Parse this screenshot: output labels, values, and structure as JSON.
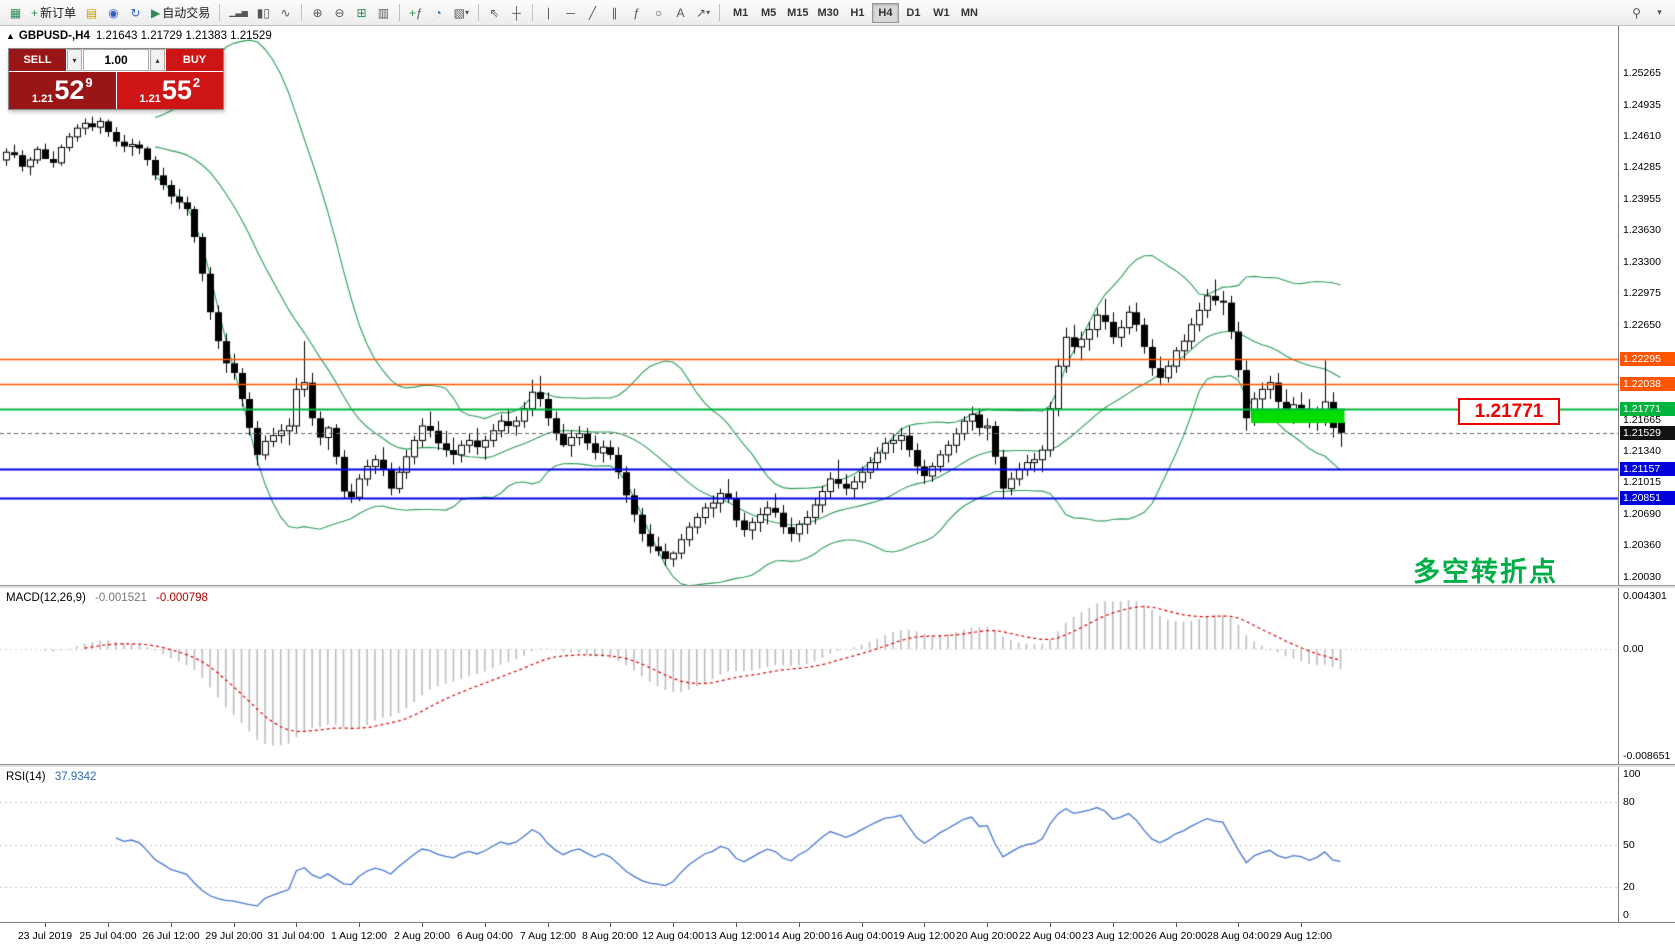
{
  "toolbar": {
    "new_order_label": "新订单",
    "autotrade_label": "自动交易",
    "timeframes": [
      "M1",
      "M5",
      "M15",
      "M30",
      "H1",
      "H4",
      "D1",
      "W1",
      "MN"
    ],
    "active_timeframe": "H4"
  },
  "icons": {
    "new_chart": "▦",
    "plus": "+",
    "templates": "▤",
    "profiles": "◉",
    "refresh": "↻",
    "play": "▶",
    "bars": "▁▃▅",
    "candles": "▮▯",
    "line_chart": "∿",
    "zoom_in": "⊕",
    "zoom_out": "⊖",
    "tile": "⊞",
    "cascade": "▥",
    "indicator_add": "ƒ",
    "period": "◔",
    "objects": "▧",
    "chevron_down": "▾",
    "cursor": "⇖",
    "crosshair": "┼",
    "vline": "∣",
    "hline": "─",
    "trendline": "╱",
    "channel": "∥",
    "fibonacci": "ƒ",
    "ellipse": "○",
    "text_tool": "A",
    "arrow_tool": "↗",
    "search": "⚲",
    "triangle_up": "▲",
    "spinner_up": "▴",
    "spinner_down": "▾"
  },
  "chart": {
    "symbol": "GBPUSD-,H4",
    "ohlc_line": "1.21643 1.21729 1.21383 1.21529",
    "price_flag": "1.21771",
    "note_text": "多空转折点"
  },
  "trade_panel": {
    "sell_label": "SELL",
    "buy_label": "BUY",
    "volume": "1.00",
    "sell_price": {
      "prefix": "1.21",
      "big": "52",
      "sup": "9"
    },
    "buy_price": {
      "prefix": "1.21",
      "big": "55",
      "sup": "2"
    },
    "colors": {
      "sell": "#9a1515",
      "buy": "#ce1414"
    }
  },
  "macd_panel": {
    "title": "MACD(12,26,9)",
    "macd_value": "-0.001521",
    "signal_value": "-0.000798",
    "scale": {
      "max": 0.004301,
      "min": -0.008651
    },
    "axis_labels": [
      "0.004301",
      "0.00",
      "-0.008651"
    ],
    "histogram_color": "#bdbdbd",
    "signal_color": "#e00000"
  },
  "rsi_panel": {
    "title": "RSI(14)",
    "value": "37.9342",
    "axis_labels": [
      100,
      80,
      50,
      20,
      0
    ],
    "levels": [
      80,
      50,
      20
    ],
    "line_color": "#4878d0"
  },
  "chart_data": {
    "type": "candlestick",
    "symbol": "GBPUSD",
    "period": "H4",
    "price_scale": {
      "max": 1.2575,
      "min": 1.1995
    },
    "current_price": 1.21529,
    "y_ticks": [
      1.25265,
      1.24935,
      1.2461,
      1.24285,
      1.23955,
      1.2363,
      1.233,
      1.22975,
      1.2265,
      1.21665,
      1.2134,
      1.21015,
      1.2069,
      1.2036,
      1.2003
    ],
    "levels": [
      {
        "price": 1.22295,
        "color": "#ff5500",
        "width": 1.6
      },
      {
        "price": 1.22038,
        "color": "#ff5500",
        "width": 1.6
      },
      {
        "price": 1.21771,
        "color": "#00b43c",
        "width": 2
      },
      {
        "price": 1.21157,
        "color": "#0000dd",
        "width": 2
      },
      {
        "price": 1.20851,
        "color": "#0000dd",
        "width": 2
      }
    ],
    "highlight_box": {
      "start": 159,
      "end": 170,
      "top": 1.2178,
      "bottom": 1.2163,
      "color": "#00dd00"
    },
    "bollinger": {
      "period": 20,
      "deviation": 2,
      "color": "#2e9e5b"
    },
    "x_labels": [
      "23 Jul 2019",
      "25 Jul 04:00",
      "26 Jul 12:00",
      "29 Jul 20:00",
      "31 Jul 04:00",
      "1 Aug 12:00",
      "2 Aug 20:00",
      "6 Aug 04:00",
      "7 Aug 12:00",
      "8 Aug 20:00",
      "12 Aug 04:00",
      "13 Aug 12:00",
      "14 Aug 20:00",
      "16 Aug 04:00",
      "19 Aug 12:00",
      "20 Aug 20:00",
      "22 Aug 04:00",
      "23 Aug 12:00",
      "26 Aug 20:00",
      "28 Aug 04:00",
      "29 Aug 12:00"
    ],
    "ohlc": [
      [
        1.2436,
        1.2448,
        1.243,
        1.2444
      ],
      [
        1.2444,
        1.2452,
        1.2438,
        1.2441
      ],
      [
        1.2441,
        1.2446,
        1.2424,
        1.2429
      ],
      [
        1.2429,
        1.2439,
        1.242,
        1.2436
      ],
      [
        1.2436,
        1.245,
        1.2432,
        1.2447
      ],
      [
        1.2447,
        1.2453,
        1.2437,
        1.2437
      ],
      [
        1.2437,
        1.2445,
        1.2428,
        1.2433
      ],
      [
        1.2433,
        1.2452,
        1.243,
        1.2449
      ],
      [
        1.2449,
        1.2464,
        1.2445,
        1.246
      ],
      [
        1.246,
        1.2473,
        1.2455,
        1.2469
      ],
      [
        1.2469,
        1.2479,
        1.2462,
        1.2474
      ],
      [
        1.2474,
        1.2481,
        1.2466,
        1.247
      ],
      [
        1.247,
        1.248,
        1.2463,
        1.2476
      ],
      [
        1.2476,
        1.2478,
        1.246,
        1.2465
      ],
      [
        1.2465,
        1.247,
        1.245,
        1.2455
      ],
      [
        1.2455,
        1.2462,
        1.2444,
        1.245
      ],
      [
        1.245,
        1.2458,
        1.244,
        1.2452
      ],
      [
        1.2452,
        1.2456,
        1.2442,
        1.2448
      ],
      [
        1.2448,
        1.245,
        1.243,
        1.2436
      ],
      [
        1.2436,
        1.244,
        1.2415,
        1.242
      ],
      [
        1.242,
        1.2428,
        1.2405,
        1.241
      ],
      [
        1.241,
        1.2415,
        1.239,
        1.2398
      ],
      [
        1.2398,
        1.2406,
        1.2385,
        1.2392
      ],
      [
        1.2392,
        1.2398,
        1.2378,
        1.2385
      ],
      [
        1.2385,
        1.2388,
        1.235,
        1.2356
      ],
      [
        1.2356,
        1.236,
        1.231,
        1.2318
      ],
      [
        1.2318,
        1.2325,
        1.227,
        1.2278
      ],
      [
        1.2278,
        1.2285,
        1.224,
        1.2248
      ],
      [
        1.2248,
        1.2256,
        1.2215,
        1.2225
      ],
      [
        1.2225,
        1.2235,
        1.2208,
        1.2215
      ],
      [
        1.2215,
        1.222,
        1.218,
        1.2188
      ],
      [
        1.2188,
        1.2195,
        1.215,
        1.2158
      ],
      [
        1.2158,
        1.2165,
        1.2119,
        1.213
      ],
      [
        1.213,
        1.215,
        1.2125,
        1.2144
      ],
      [
        1.2144,
        1.2158,
        1.2138,
        1.215
      ],
      [
        1.215,
        1.2162,
        1.2142,
        1.2155
      ],
      [
        1.2155,
        1.2168,
        1.214,
        1.216
      ],
      [
        1.216,
        1.221,
        1.2152,
        1.2198
      ],
      [
        1.2198,
        1.2248,
        1.219,
        1.2205
      ],
      [
        1.2205,
        1.2215,
        1.216,
        1.2168
      ],
      [
        1.2168,
        1.2175,
        1.214,
        1.2148
      ],
      [
        1.2148,
        1.216,
        1.2135,
        1.2158
      ],
      [
        1.2158,
        1.2162,
        1.212,
        1.2128
      ],
      [
        1.2128,
        1.2135,
        1.2085,
        1.2092
      ],
      [
        1.2092,
        1.21,
        1.208,
        1.2086
      ],
      [
        1.2086,
        1.211,
        1.2082,
        1.2105
      ],
      [
        1.2105,
        1.2125,
        1.2098,
        1.2118
      ],
      [
        1.2118,
        1.213,
        1.211,
        1.2125
      ],
      [
        1.2125,
        1.2138,
        1.2108,
        1.2115
      ],
      [
        1.2115,
        1.2122,
        1.2088,
        1.2095
      ],
      [
        1.2095,
        1.2118,
        1.209,
        1.2112
      ],
      [
        1.2112,
        1.2135,
        1.2105,
        1.2128
      ],
      [
        1.2128,
        1.215,
        1.212,
        1.2145
      ],
      [
        1.2145,
        1.2168,
        1.2138,
        1.216
      ],
      [
        1.216,
        1.2175,
        1.2148,
        1.2155
      ],
      [
        1.2155,
        1.2165,
        1.2135,
        1.2142
      ],
      [
        1.2142,
        1.2155,
        1.2128,
        1.2135
      ],
      [
        1.2135,
        1.2148,
        1.212,
        1.213
      ],
      [
        1.213,
        1.2145,
        1.2122,
        1.214
      ],
      [
        1.214,
        1.2152,
        1.2132,
        1.2145
      ],
      [
        1.2145,
        1.2158,
        1.213,
        1.2138
      ],
      [
        1.2138,
        1.215,
        1.2125,
        1.2145
      ],
      [
        1.2145,
        1.2162,
        1.2138,
        1.2155
      ],
      [
        1.2155,
        1.2172,
        1.2148,
        1.2165
      ],
      [
        1.2165,
        1.2178,
        1.2152,
        1.216
      ],
      [
        1.216,
        1.217,
        1.215,
        1.2165
      ],
      [
        1.2165,
        1.2185,
        1.2158,
        1.2178
      ],
      [
        1.2178,
        1.2208,
        1.217,
        1.2195
      ],
      [
        1.2195,
        1.2212,
        1.218,
        1.2188
      ],
      [
        1.2188,
        1.2195,
        1.216,
        1.2168
      ],
      [
        1.2168,
        1.2175,
        1.2145,
        1.2152
      ],
      [
        1.2152,
        1.2162,
        1.2138,
        1.214
      ],
      [
        1.214,
        1.2155,
        1.2128,
        1.2148
      ],
      [
        1.2148,
        1.216,
        1.214,
        1.2152
      ],
      [
        1.2152,
        1.2158,
        1.2135,
        1.2142
      ],
      [
        1.2142,
        1.215,
        1.2125,
        1.2132
      ],
      [
        1.2132,
        1.2145,
        1.2122,
        1.2138
      ],
      [
        1.2138,
        1.2145,
        1.2125,
        1.213
      ],
      [
        1.213,
        1.2138,
        1.2105,
        1.2112
      ],
      [
        1.2112,
        1.2118,
        1.208,
        1.2088
      ],
      [
        1.2088,
        1.2095,
        1.206,
        1.2068
      ],
      [
        1.2068,
        1.2075,
        1.204,
        1.2048
      ],
      [
        1.2048,
        1.2058,
        1.2028,
        1.2035
      ],
      [
        1.2035,
        1.2045,
        1.2025,
        1.203
      ],
      [
        1.203,
        1.2038,
        1.2015,
        1.2022
      ],
      [
        1.2022,
        1.203,
        1.2014,
        1.2028
      ],
      [
        1.2028,
        1.2048,
        1.2022,
        1.2042
      ],
      [
        1.2042,
        1.206,
        1.2035,
        1.2055
      ],
      [
        1.2055,
        1.207,
        1.2048,
        1.2065
      ],
      [
        1.2065,
        1.208,
        1.2058,
        1.2075
      ],
      [
        1.2075,
        1.2088,
        1.2065,
        1.208
      ],
      [
        1.208,
        1.2095,
        1.207,
        1.209
      ],
      [
        1.209,
        1.2105,
        1.208,
        1.2085
      ],
      [
        1.2085,
        1.2092,
        1.2055,
        1.2062
      ],
      [
        1.2062,
        1.207,
        1.2045,
        1.2052
      ],
      [
        1.2052,
        1.2065,
        1.2042,
        1.206
      ],
      [
        1.206,
        1.2075,
        1.205,
        1.2068
      ],
      [
        1.2068,
        1.2082,
        1.2058,
        1.2075
      ],
      [
        1.2075,
        1.209,
        1.2065,
        1.207
      ],
      [
        1.207,
        1.2078,
        1.2048,
        1.2055
      ],
      [
        1.2055,
        1.2065,
        1.204,
        1.2048
      ],
      [
        1.2048,
        1.2062,
        1.204,
        1.2058
      ],
      [
        1.2058,
        1.2072,
        1.2048,
        1.2065
      ],
      [
        1.2065,
        1.2085,
        1.2058,
        1.2078
      ],
      [
        1.2078,
        1.2098,
        1.207,
        1.2092
      ],
      [
        1.2092,
        1.2112,
        1.2085,
        1.2105
      ],
      [
        1.2105,
        1.2125,
        1.2095,
        1.21
      ],
      [
        1.21,
        1.211,
        1.2088,
        1.2095
      ],
      [
        1.2095,
        1.2108,
        1.2085,
        1.2102
      ],
      [
        1.2102,
        1.2118,
        1.2095,
        1.2112
      ],
      [
        1.2112,
        1.2128,
        1.2105,
        1.2122
      ],
      [
        1.2122,
        1.2138,
        1.2115,
        1.2132
      ],
      [
        1.2132,
        1.2148,
        1.2125,
        1.2142
      ],
      [
        1.2142,
        1.2152,
        1.2132,
        1.2145
      ],
      [
        1.2145,
        1.2158,
        1.2135,
        1.215
      ],
      [
        1.215,
        1.216,
        1.2128,
        1.2135
      ],
      [
        1.2135,
        1.2142,
        1.211,
        1.2118
      ],
      [
        1.2118,
        1.2125,
        1.21,
        1.2108
      ],
      [
        1.2108,
        1.2122,
        1.2102,
        1.2118
      ],
      [
        1.2118,
        1.2135,
        1.2112,
        1.213
      ],
      [
        1.213,
        1.2145,
        1.2122,
        1.214
      ],
      [
        1.214,
        1.2158,
        1.2132,
        1.2152
      ],
      [
        1.2152,
        1.217,
        1.2145,
        1.2165
      ],
      [
        1.2165,
        1.218,
        1.2155,
        1.2172
      ],
      [
        1.2172,
        1.2178,
        1.215,
        1.2158
      ],
      [
        1.2158,
        1.2168,
        1.2145,
        1.216
      ],
      [
        1.216,
        1.2165,
        1.212,
        1.2128
      ],
      [
        1.2128,
        1.2135,
        1.2085,
        1.2095
      ],
      [
        1.2095,
        1.2112,
        1.2088,
        1.2105
      ],
      [
        1.2105,
        1.2122,
        1.2098,
        1.2115
      ],
      [
        1.2115,
        1.213,
        1.2108,
        1.2122
      ],
      [
        1.2122,
        1.2132,
        1.2112,
        1.2125
      ],
      [
        1.2125,
        1.214,
        1.2112,
        1.2135
      ],
      [
        1.2135,
        1.2185,
        1.2128,
        1.2178
      ],
      [
        1.2178,
        1.223,
        1.217,
        1.2222
      ],
      [
        1.2222,
        1.2262,
        1.2215,
        1.2252
      ],
      [
        1.2252,
        1.2265,
        1.2235,
        1.2242
      ],
      [
        1.2242,
        1.2258,
        1.2228,
        1.225
      ],
      [
        1.225,
        1.2268,
        1.2238,
        1.226
      ],
      [
        1.226,
        1.2282,
        1.2252,
        1.2275
      ],
      [
        1.2275,
        1.2292,
        1.226,
        1.2268
      ],
      [
        1.2268,
        1.2278,
        1.2245,
        1.2252
      ],
      [
        1.2252,
        1.227,
        1.2242,
        1.2262
      ],
      [
        1.2262,
        1.2285,
        1.2255,
        1.2278
      ],
      [
        1.2278,
        1.2288,
        1.2258,
        1.2265
      ],
      [
        1.2265,
        1.2272,
        1.2235,
        1.2242
      ],
      [
        1.2242,
        1.225,
        1.2212,
        1.222
      ],
      [
        1.222,
        1.2232,
        1.2202,
        1.221
      ],
      [
        1.221,
        1.2228,
        1.2205,
        1.2222
      ],
      [
        1.2222,
        1.2242,
        1.2215,
        1.2238
      ],
      [
        1.2238,
        1.2255,
        1.2228,
        1.2248
      ],
      [
        1.2248,
        1.2272,
        1.224,
        1.2265
      ],
      [
        1.2265,
        1.2288,
        1.2258,
        1.228
      ],
      [
        1.228,
        1.2302,
        1.2272,
        1.2295
      ],
      [
        1.2295,
        1.2312,
        1.2285,
        1.229
      ],
      [
        1.229,
        1.23,
        1.2275,
        1.2288
      ],
      [
        1.2288,
        1.2295,
        1.225,
        1.2258
      ],
      [
        1.2258,
        1.2268,
        1.221,
        1.2218
      ],
      [
        1.2218,
        1.2228,
        1.2155,
        1.2168
      ],
      [
        1.2168,
        1.2195,
        1.216,
        1.2188
      ],
      [
        1.2188,
        1.2205,
        1.2178,
        1.2198
      ],
      [
        1.2198,
        1.2212,
        1.2188,
        1.2205
      ],
      [
        1.2205,
        1.2215,
        1.2178,
        1.2185
      ],
      [
        1.2185,
        1.2198,
        1.2168,
        1.2175
      ],
      [
        1.2175,
        1.219,
        1.2162,
        1.2182
      ],
      [
        1.2182,
        1.2195,
        1.217,
        1.2178
      ],
      [
        1.2178,
        1.2188,
        1.2158,
        1.2165
      ],
      [
        1.2165,
        1.218,
        1.2155,
        1.2172
      ],
      [
        1.2172,
        1.2228,
        1.216,
        1.2185
      ],
      [
        1.2185,
        1.2195,
        1.2148,
        1.2158
      ],
      [
        1.21643,
        1.21729,
        1.21383,
        1.21529
      ]
    ]
  }
}
